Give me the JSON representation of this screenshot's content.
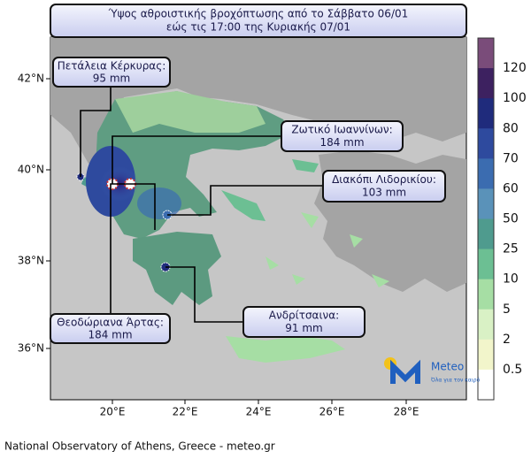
{
  "title": [
    "Ύψος αθροιστικής βροχόπτωσης από το Σάββατο 06/01",
    "εώς τις 17:00 της Κυριακής 07/01"
  ],
  "callouts": [
    {
      "name": "Πετάλεια Κέρκυρας:",
      "amount": "95 mm"
    },
    {
      "name": "Ζωτικό Ιωαννίνων:",
      "amount": "184 mm"
    },
    {
      "name": "Διακόπι Λιδορικίου:",
      "amount": "103 mm"
    },
    {
      "name": "Θεοδώριανα Άρτας:",
      "amount": "184 mm"
    },
    {
      "name": "Ανδρίτσαινα:",
      "amount": "91 mm"
    }
  ],
  "lat_labels": [
    "42°N",
    "40°N",
    "38°N",
    "36°N"
  ],
  "lon_labels": [
    "20°E",
    "22°E",
    "24°E",
    "26°E",
    "28°E"
  ],
  "colorbar": {
    "labels": [
      "120",
      "100",
      "80",
      "70",
      "60",
      "50",
      "25",
      "10",
      "5",
      "2",
      "0.5"
    ],
    "colors": [
      "#7a4c7a",
      "#3d2160",
      "#1f2b7c",
      "#2e4a9e",
      "#3b6cb0",
      "#5a92b9",
      "#4f9b8e",
      "#6cbf93",
      "#a6dea4",
      "#d9f1c5",
      "#f2f5cb",
      "#ffffff"
    ]
  },
  "logo": {
    "name": "Meteo",
    "slogan": "Όλα για τον καιρό"
  },
  "footer": "National Observatory of Athens, Greece - meteo.gr"
}
